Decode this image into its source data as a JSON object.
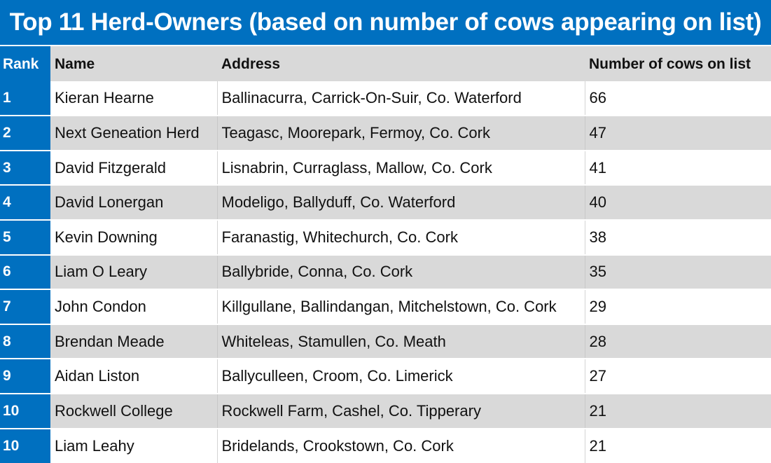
{
  "title": "Top 11 Herd-Owners (based on number of cows appearing on list)",
  "columns": {
    "rank": "Rank",
    "name": "Name",
    "address": "Address",
    "cows": "Number of cows on list"
  },
  "rows": [
    {
      "rank": "1",
      "name": "Kieran Hearne",
      "address": "Ballinacurra, Carrick-On-Suir, Co. Waterford",
      "cows": "66"
    },
    {
      "rank": "2",
      "name": "Next Geneation Herd",
      "address": "Teagasc, Moorepark, Fermoy, Co. Cork",
      "cows": "47"
    },
    {
      "rank": "3",
      "name": "David Fitzgerald",
      "address": "Lisnabrin, Curraglass, Mallow, Co. Cork",
      "cows": "41"
    },
    {
      "rank": "4",
      "name": "David Lonergan",
      "address": "Modeligo, Ballyduff, Co. Waterford",
      "cows": "40"
    },
    {
      "rank": "5",
      "name": "Kevin Downing",
      "address": "Faranastig, Whitechurch, Co. Cork",
      "cows": "38"
    },
    {
      "rank": "6",
      "name": "Liam O Leary",
      "address": "Ballybride, Conna, Co. Cork",
      "cows": "35"
    },
    {
      "rank": "7",
      "name": "John Condon",
      "address": "Killgullane, Ballindangan, Mitchelstown, Co. Cork",
      "cows": "29"
    },
    {
      "rank": "8",
      "name": "Brendan Meade",
      "address": "Whiteleas, Stamullen, Co. Meath",
      "cows": "28"
    },
    {
      "rank": "9",
      "name": "Aidan Liston",
      "address": "Ballyculleen, Croom, Co. Limerick",
      "cows": "27"
    },
    {
      "rank": "10",
      "name": "Rockwell College",
      "address": "Rockwell Farm, Cashel, Co. Tipperary",
      "cows": "21"
    },
    {
      "rank": "10",
      "name": "Liam Leahy",
      "address": "Bridelands, Crookstown, Co. Cork",
      "cows": "21"
    }
  ],
  "colors": {
    "header_blue": "#0070c0",
    "stripe_gray": "#d9d9d9",
    "text_white": "#ffffff",
    "text_dark": "#111111"
  }
}
